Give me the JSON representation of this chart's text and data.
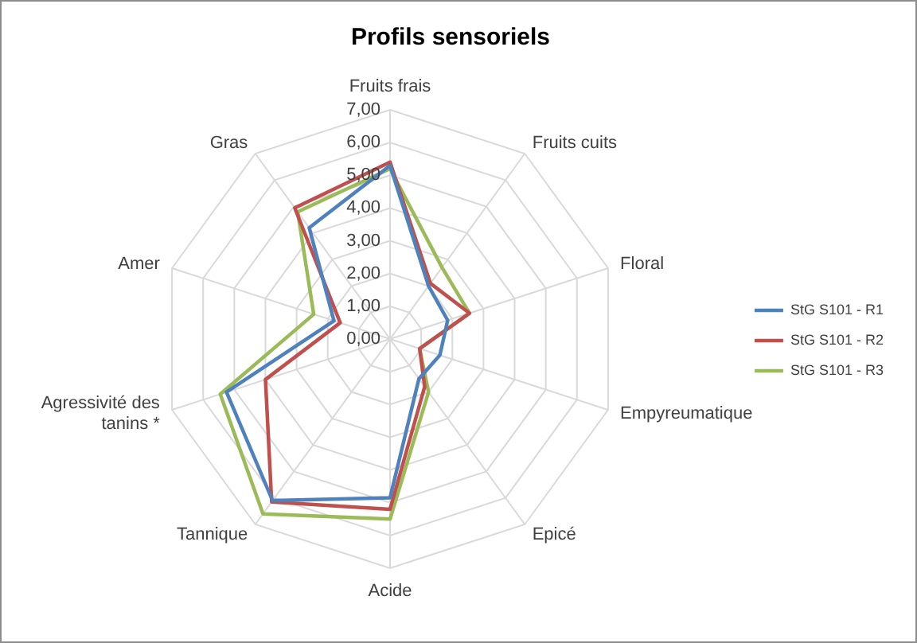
{
  "chart_data": {
    "type": "radar",
    "title": "Profils sensoriels",
    "categories": [
      "Fruits frais",
      "Fruits cuits",
      "Floral",
      "Empyreumatique",
      "Epicé",
      "Acide",
      "Tannique",
      "Agressivité des tanins *",
      "Amer",
      "Gras"
    ],
    "series": [
      {
        "name": "StG S101 - R1",
        "color": "#4f81bd",
        "values": [
          5.3,
          2.0,
          1.85,
          1.6,
          1.5,
          4.85,
          6.1,
          5.25,
          1.8,
          4.2
        ]
      },
      {
        "name": "StG S101 - R2",
        "color": "#c0504d",
        "values": [
          5.4,
          2.1,
          2.55,
          0.95,
          1.8,
          5.2,
          6.15,
          4.0,
          1.6,
          4.95
        ]
      },
      {
        "name": "StG S101 - R3",
        "color": "#9bbb59",
        "values": [
          5.2,
          2.7,
          2.55,
          0.95,
          2.0,
          5.5,
          6.6,
          5.45,
          2.45,
          4.8
        ]
      }
    ],
    "ylim": [
      0,
      7
    ],
    "yticks": [
      {
        "value": 0,
        "label": "0,00"
      },
      {
        "value": 1,
        "label": "1,00"
      },
      {
        "value": 2,
        "label": "2,00"
      },
      {
        "value": 3,
        "label": "3,00"
      },
      {
        "value": 4,
        "label": "4,00"
      },
      {
        "value": 5,
        "label": "5,00"
      },
      {
        "value": 6,
        "label": "6,00"
      },
      {
        "value": 7,
        "label": "7,00"
      }
    ],
    "grid": true,
    "legend": "right",
    "marker": "none"
  }
}
